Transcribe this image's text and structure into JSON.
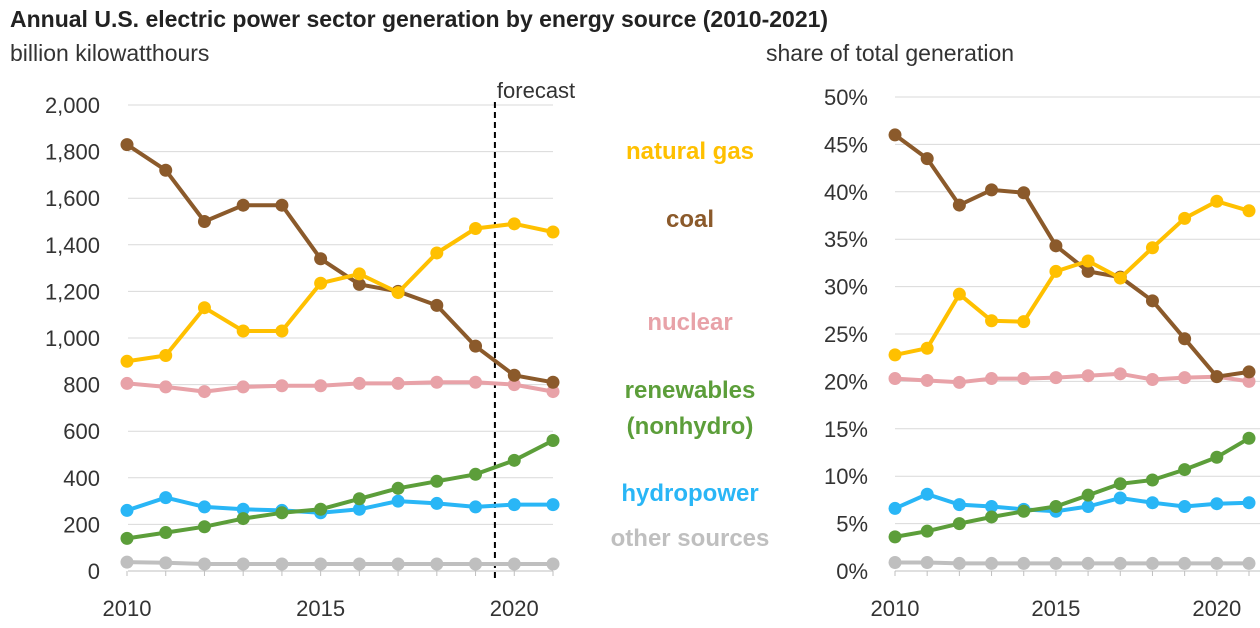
{
  "title": "Annual U.S. electric power sector generation by energy source (2010-2021)",
  "chart_data": [
    {
      "type": "line",
      "ylabel": "billion kilowatthours",
      "x": [
        2010,
        2011,
        2012,
        2013,
        2014,
        2015,
        2016,
        2017,
        2018,
        2019,
        2020,
        2021
      ],
      "xticks": [
        "2010",
        "2015",
        "2020"
      ],
      "yticks": [
        "0",
        "200",
        "400",
        "600",
        "800",
        "1,000",
        "1,200",
        "1,400",
        "1,600",
        "1,800",
        "2,000"
      ],
      "ylim": [
        0,
        2000
      ],
      "grid": true,
      "annotation": "forecast",
      "forecast_start": 2019.5,
      "series": [
        {
          "name": "natural gas",
          "color": "#FFC000",
          "values": [
            900,
            925,
            1130,
            1030,
            1030,
            1235,
            1275,
            1195,
            1365,
            1470,
            1490,
            1455
          ]
        },
        {
          "name": "coal",
          "color": "#8B5A2B",
          "values": [
            1830,
            1720,
            1500,
            1570,
            1570,
            1340,
            1230,
            1200,
            1140,
            965,
            840,
            810
          ]
        },
        {
          "name": "nuclear",
          "color": "#E8A2A8",
          "values": [
            805,
            790,
            770,
            790,
            795,
            795,
            805,
            805,
            810,
            810,
            800,
            770
          ]
        },
        {
          "name": "renewables (nonhydro)",
          "color": "#5C9E3A",
          "values": [
            140,
            165,
            190,
            225,
            250,
            265,
            310,
            355,
            385,
            415,
            475,
            560
          ]
        },
        {
          "name": "hydropower",
          "color": "#29B6F6",
          "values": [
            260,
            315,
            275,
            265,
            260,
            250,
            265,
            300,
            290,
            275,
            285,
            285
          ]
        },
        {
          "name": "other sources",
          "color": "#BFBFBF",
          "values": [
            38,
            35,
            30,
            30,
            30,
            30,
            30,
            30,
            30,
            30,
            30,
            30
          ]
        }
      ]
    },
    {
      "type": "line",
      "ylabel": "share of total generation",
      "x": [
        2010,
        2011,
        2012,
        2013,
        2014,
        2015,
        2016,
        2017,
        2018,
        2019,
        2020,
        2021
      ],
      "xticks": [
        "2010",
        "2015",
        "2020"
      ],
      "yticks": [
        "0%",
        "5%",
        "10%",
        "15%",
        "20%",
        "25%",
        "30%",
        "35%",
        "40%",
        "45%",
        "50%"
      ],
      "ylim": [
        0,
        50
      ],
      "grid": true,
      "series": [
        {
          "name": "natural gas",
          "color": "#FFC000",
          "values": [
            22.8,
            23.5,
            29.2,
            26.4,
            26.3,
            31.6,
            32.7,
            30.9,
            34.1,
            37.2,
            39.0,
            38.0
          ]
        },
        {
          "name": "coal",
          "color": "#8B5A2B",
          "values": [
            46.0,
            43.5,
            38.6,
            40.2,
            39.9,
            34.3,
            31.6,
            31.0,
            28.5,
            24.5,
            20.5,
            21.0
          ]
        },
        {
          "name": "nuclear",
          "color": "#E8A2A8",
          "values": [
            20.3,
            20.1,
            19.9,
            20.3,
            20.3,
            20.4,
            20.6,
            20.8,
            20.2,
            20.4,
            20.5,
            20.0
          ]
        },
        {
          "name": "renewables (nonhydro)",
          "color": "#5C9E3A",
          "values": [
            3.6,
            4.2,
            5.0,
            5.7,
            6.3,
            6.8,
            8.0,
            9.2,
            9.6,
            10.7,
            12.0,
            14.0
          ]
        },
        {
          "name": "hydropower",
          "color": "#29B6F6",
          "values": [
            6.6,
            8.1,
            7.0,
            6.8,
            6.5,
            6.3,
            6.8,
            7.7,
            7.2,
            6.8,
            7.1,
            7.2
          ]
        },
        {
          "name": "other sources",
          "color": "#BFBFBF",
          "values": [
            0.9,
            0.9,
            0.8,
            0.8,
            0.8,
            0.8,
            0.8,
            0.8,
            0.8,
            0.8,
            0.8,
            0.8
          ]
        }
      ]
    }
  ],
  "legend": [
    {
      "label": "natural gas",
      "color": "#FFC000"
    },
    {
      "label": "coal",
      "color": "#8B5A2B"
    },
    {
      "label": "nuclear",
      "color": "#E8A2A8"
    },
    {
      "label": "renewables",
      "color": "#5C9E3A"
    },
    {
      "label": "(nonhydro)",
      "color": "#5C9E3A"
    },
    {
      "label": "hydropower",
      "color": "#29B6F6"
    },
    {
      "label": "other sources",
      "color": "#BFBFBF"
    }
  ]
}
